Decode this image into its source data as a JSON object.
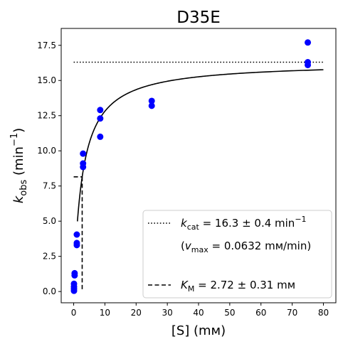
{
  "chart_data": {
    "type": "scatter",
    "title": "D35E",
    "xlabel": "[S] (mм)",
    "ylabel_main": "k",
    "ylabel_sub": "obs",
    "ylabel_unit_open": " (min",
    "ylabel_unit_sup": "−1",
    "ylabel_unit_close": ")",
    "xlim": [
      -4,
      84
    ],
    "ylim": [
      -0.8,
      18.7
    ],
    "xticks": [
      0,
      10,
      20,
      30,
      40,
      50,
      60,
      70,
      80
    ],
    "xtick_labels": [
      "0",
      "10",
      "20",
      "30",
      "40",
      "50",
      "60",
      "70",
      "80"
    ],
    "yticks": [
      0.0,
      2.5,
      5.0,
      7.5,
      10.0,
      12.5,
      15.0,
      17.5
    ],
    "ytick_labels": [
      "0.0",
      "2.5",
      "5.0",
      "7.5",
      "10.0",
      "12.5",
      "15.0",
      "17.5"
    ],
    "points_color": "#0000ff",
    "points": [
      {
        "x": 0.1,
        "y": 0.05
      },
      {
        "x": 0.1,
        "y": 0.2
      },
      {
        "x": 0.1,
        "y": 0.35
      },
      {
        "x": 0.1,
        "y": 0.55
      },
      {
        "x": 0.3,
        "y": 1.15
      },
      {
        "x": 0.3,
        "y": 1.3
      },
      {
        "x": 1.0,
        "y": 3.3
      },
      {
        "x": 1.0,
        "y": 3.45
      },
      {
        "x": 1.0,
        "y": 4.05
      },
      {
        "x": 3.0,
        "y": 8.85
      },
      {
        "x": 3.0,
        "y": 9.1
      },
      {
        "x": 3.0,
        "y": 9.8
      },
      {
        "x": 8.5,
        "y": 11.0
      },
      {
        "x": 8.5,
        "y": 12.3
      },
      {
        "x": 8.5,
        "y": 12.9
      },
      {
        "x": 25.0,
        "y": 13.2
      },
      {
        "x": 25.0,
        "y": 13.55
      },
      {
        "x": 75.0,
        "y": 16.1
      },
      {
        "x": 75.0,
        "y": 16.3
      },
      {
        "x": 75.0,
        "y": 17.7
      }
    ],
    "fit": {
      "kcat": 16.3,
      "Km": 2.72,
      "x_start": 1.2,
      "x_end": 80
    },
    "kcat_line": {
      "y": 16.3,
      "x_start": 0,
      "x_end": 80
    },
    "km_line": {
      "x": 2.72,
      "y_top": 8.15,
      "y_bottom": 0,
      "h_x_start": 0
    },
    "legend": {
      "position": "lower-right",
      "kcat_sym": "k",
      "kcat_sub": "cat",
      "kcat_rest": " = 16.3 ± 0.4 min",
      "kcat_sup": "−1",
      "vmax_open": "(",
      "vmax_sym": "v",
      "vmax_sub": "max",
      "vmax_rest": " = 0.0632 mм/min)",
      "km_sym": "K",
      "km_sub": "M",
      "km_rest": " = 2.72 ± 0.31 mм"
    }
  }
}
